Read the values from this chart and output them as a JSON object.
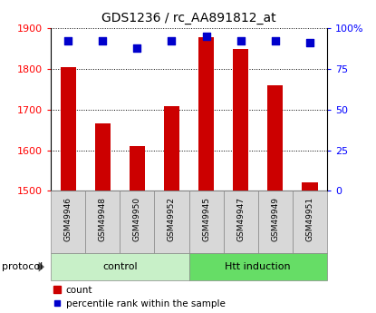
{
  "title": "GDS1236 / rc_AA891812_at",
  "samples": [
    "GSM49946",
    "GSM49948",
    "GSM49950",
    "GSM49952",
    "GSM49945",
    "GSM49947",
    "GSM49949",
    "GSM49951"
  ],
  "counts": [
    1805,
    1665,
    1610,
    1708,
    1878,
    1848,
    1760,
    1522
  ],
  "percentiles": [
    92,
    92,
    88,
    92,
    95,
    92,
    92,
    91
  ],
  "groups": [
    "control",
    "control",
    "control",
    "control",
    "Htt induction",
    "Htt induction",
    "Htt induction",
    "Htt induction"
  ],
  "group_colors": {
    "control": "#c8f0c8",
    "Htt induction": "#66dd66"
  },
  "bar_color": "#cc0000",
  "dot_color": "#0000cc",
  "ylim_left": [
    1500,
    1900
  ],
  "ylim_right": [
    0,
    100
  ],
  "yticks_left": [
    1500,
    1600,
    1700,
    1800,
    1900
  ],
  "yticks_right": [
    0,
    25,
    50,
    75,
    100
  ],
  "yticklabels_right": [
    "0",
    "25",
    "50",
    "75",
    "100%"
  ],
  "bar_width": 0.45,
  "pct_marker_size": 28
}
